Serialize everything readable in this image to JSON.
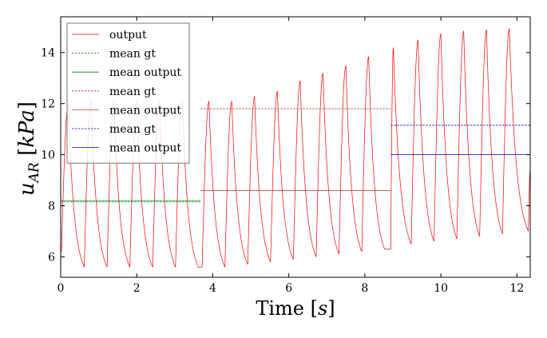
{
  "chart_data": {
    "type": "line",
    "xlabel": "Time [s]",
    "ylabel": "u_AR [kPa]",
    "xlim": [
      0,
      12.35
    ],
    "ylim": [
      5.2,
      15.4
    ],
    "x_ticks": [
      0,
      2,
      4,
      6,
      8,
      10,
      12
    ],
    "y_ticks": [
      6,
      8,
      10,
      12,
      14
    ],
    "grid": false,
    "legend_position": "top-left",
    "legend": [
      {
        "label": "output",
        "color": "#ff0000",
        "dash": "solid"
      },
      {
        "label": "mean gt",
        "color": "#008000",
        "dash": "dashed"
      },
      {
        "label": "mean output",
        "color": "#008000",
        "dash": "solid"
      },
      {
        "label": "mean gt",
        "color": "#c04040",
        "dash": "dashed"
      },
      {
        "label": "mean output",
        "color": "#c04040",
        "dash": "solid"
      },
      {
        "label": "mean gt",
        "color": "#0000cc",
        "dash": "dashed"
      },
      {
        "label": "mean output",
        "color": "#0000cc",
        "dash": "solid"
      }
    ],
    "output_signal": {
      "color": "#ff0000",
      "start": 6.2,
      "cycles": [
        {
          "t0": 0.02,
          "tpeak": 0.2,
          "t1": 0.62,
          "peak": 12.0,
          "trough": 5.6
        },
        {
          "t0": 0.62,
          "tpeak": 0.8,
          "t1": 1.22,
          "peak": 12.1,
          "trough": 5.6
        },
        {
          "t0": 1.22,
          "tpeak": 1.4,
          "t1": 1.82,
          "peak": 12.1,
          "trough": 5.6
        },
        {
          "t0": 1.82,
          "tpeak": 2.0,
          "t1": 2.42,
          "peak": 12.1,
          "trough": 5.6
        },
        {
          "t0": 2.42,
          "tpeak": 2.6,
          "t1": 3.02,
          "peak": 12.1,
          "trough": 5.6
        },
        {
          "t0": 3.02,
          "tpeak": 3.2,
          "t1": 3.62,
          "peak": 12.1,
          "trough": 5.6
        },
        {
          "t0": 3.72,
          "tpeak": 3.9,
          "t1": 4.32,
          "peak": 12.1,
          "trough": 5.6
        },
        {
          "t0": 4.32,
          "tpeak": 4.5,
          "t1": 4.92,
          "peak": 12.1,
          "trough": 5.7
        },
        {
          "t0": 4.92,
          "tpeak": 5.1,
          "t1": 5.52,
          "peak": 12.3,
          "trough": 5.8
        },
        {
          "t0": 5.52,
          "tpeak": 5.7,
          "t1": 6.12,
          "peak": 12.5,
          "trough": 5.9
        },
        {
          "t0": 6.12,
          "tpeak": 6.3,
          "t1": 6.72,
          "peak": 12.9,
          "trough": 6.0
        },
        {
          "t0": 6.72,
          "tpeak": 6.9,
          "t1": 7.32,
          "peak": 13.2,
          "trough": 6.1
        },
        {
          "t0": 7.32,
          "tpeak": 7.5,
          "t1": 7.92,
          "peak": 13.5,
          "trough": 6.2
        },
        {
          "t0": 7.92,
          "tpeak": 8.1,
          "t1": 8.52,
          "peak": 13.85,
          "trough": 6.3
        },
        {
          "t0": 8.68,
          "tpeak": 8.75,
          "t1": 9.22,
          "peak": 14.2,
          "trough": 6.5
        },
        {
          "t0": 9.22,
          "tpeak": 9.4,
          "t1": 9.82,
          "peak": 14.5,
          "trough": 6.6
        },
        {
          "t0": 9.82,
          "tpeak": 10.0,
          "t1": 10.42,
          "peak": 14.75,
          "trough": 6.7
        },
        {
          "t0": 10.42,
          "tpeak": 10.6,
          "t1": 11.02,
          "peak": 14.85,
          "trough": 6.8
        },
        {
          "t0": 11.02,
          "tpeak": 11.2,
          "t1": 11.62,
          "peak": 14.9,
          "trough": 6.9
        },
        {
          "t0": 11.62,
          "tpeak": 11.8,
          "t1": 12.3,
          "peak": 14.95,
          "trough": 7.0
        },
        {
          "t0": 12.3,
          "tpeak": 12.35,
          "t1": 12.35,
          "peak": 9.4,
          "trough": 9.4
        }
      ]
    },
    "mean_lines": [
      {
        "name": "mean gt",
        "color": "#008000",
        "dash": "dashed",
        "x0": 0.0,
        "x1": 3.68,
        "y": 8.15
      },
      {
        "name": "mean output",
        "color": "#008000",
        "dash": "solid",
        "x0": 0.0,
        "x1": 3.68,
        "y": 8.2
      },
      {
        "name": "mean gt",
        "color": "#c04040",
        "dash": "dashed",
        "x0": 3.68,
        "x1": 8.68,
        "y": 11.8
      },
      {
        "name": "mean output",
        "color": "#c04040",
        "dash": "solid",
        "x0": 3.68,
        "x1": 8.68,
        "y": 8.6
      },
      {
        "name": "mean gt",
        "color": "#0000cc",
        "dash": "dashed",
        "x0": 8.68,
        "x1": 12.35,
        "y": 11.15
      },
      {
        "name": "mean output",
        "color": "#0000cc",
        "dash": "solid",
        "x0": 8.68,
        "x1": 12.35,
        "y": 10.0
      }
    ]
  }
}
